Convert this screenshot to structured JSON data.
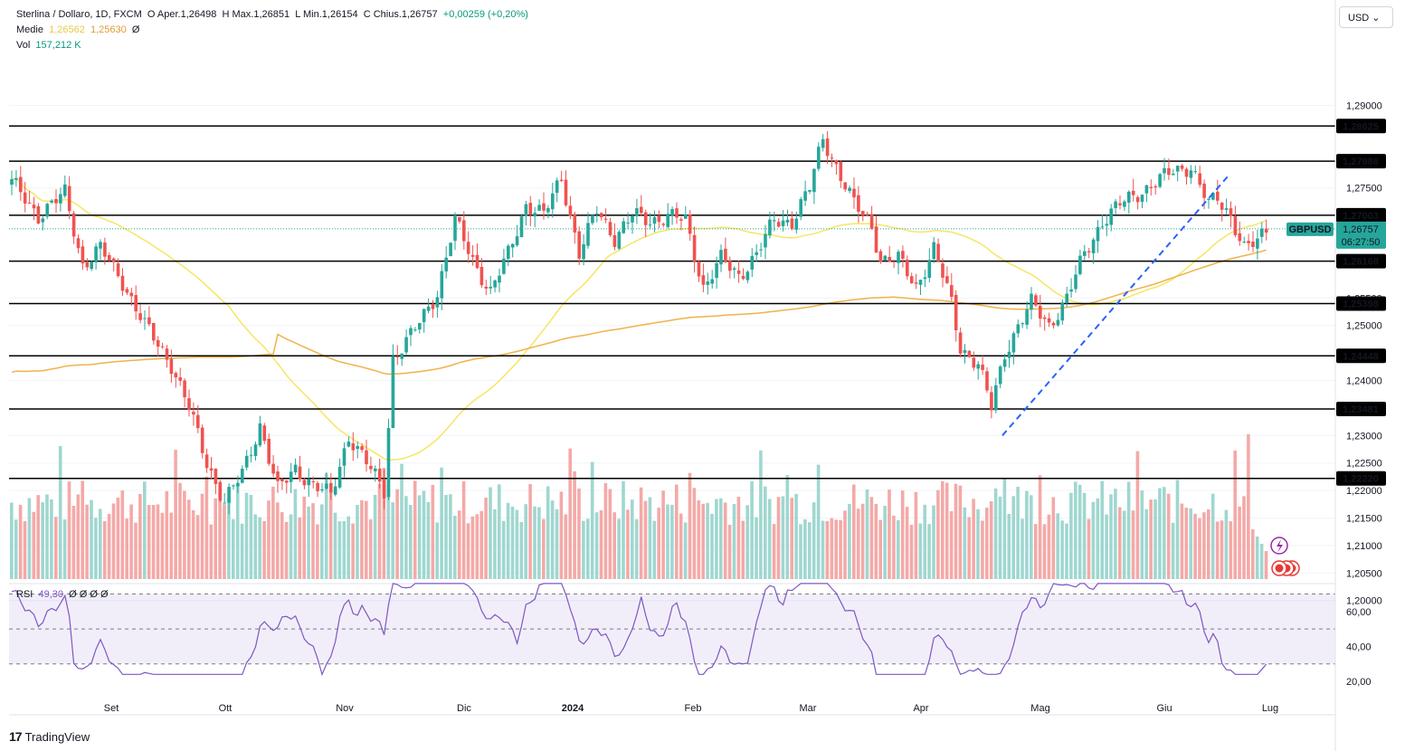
{
  "header": {
    "symbol_line": "Sterlina / Dollaro, 1D, FXCM",
    "o_label": "O",
    "o_value": "Aper.1,26498",
    "h_label": "H",
    "h_value": "Max.1,26851",
    "l_label": "L",
    "l_value": "Min.1,26154",
    "c_label": "C",
    "c_value": "Chius.1,26757",
    "change": "+0,00259 (+0,20%)",
    "ma_label": "Medie",
    "ma1": "1,26562",
    "ma2": "1,25630",
    "ma_eye": "Ø",
    "vol_label": "Vol",
    "vol_value": "157,212 K",
    "rsi_label": "RSI",
    "rsi_value": "49,30",
    "rsi_eyes": "Ø Ø Ø Ø"
  },
  "currency_button": "USD",
  "watermark": "TradingView",
  "colors": {
    "up": "#26a69a",
    "down": "#ef5350",
    "ma_fast": "#f5e663",
    "ma_slow": "#f0b24a",
    "trend": "#2962ff",
    "rsi": "#7e57c2"
  },
  "chart_data": {
    "type": "candlestick",
    "price_axis": {
      "min": 1.195,
      "max": 1.2955,
      "ticks": [
        "1,29000",
        "1,27500",
        "1,25500",
        "1,25000",
        "1,24000",
        "1,23000",
        "1,22500",
        "1,22000",
        "1,21500",
        "1,21000",
        "1,20500",
        "1,20000"
      ]
    },
    "time_labels": [
      "Set",
      "Ott",
      "Nov",
      "Dic",
      "2024",
      "Feb",
      "Mar",
      "Apr",
      "Mag",
      "Giu",
      "Lug"
    ],
    "horizontal_levels": [
      "1,28625",
      "1,27986",
      "1,27003",
      "1,26168",
      "1,25398",
      "1,24448",
      "1,23481",
      "1,22220"
    ],
    "last_price": {
      "symbol": "GBPUSD",
      "price": "1,26757",
      "countdown": "06:27:50"
    },
    "trendline": {
      "from": [
        "Apr-22",
        1.23
      ],
      "to": [
        "Giu-12",
        1.276
      ]
    },
    "rsi": {
      "ticks": [
        "60,00",
        "40,00",
        "20,00"
      ],
      "upper": 70,
      "lower": 30,
      "mid": 50
    },
    "anchors": [
      {
        "i": 0,
        "p": 1.276
      },
      {
        "i": 6,
        "p": 1.27
      },
      {
        "i": 12,
        "p": 1.274
      },
      {
        "i": 16,
        "p": 1.261
      },
      {
        "i": 20,
        "p": 1.264
      },
      {
        "i": 25,
        "p": 1.258
      },
      {
        "i": 30,
        "p": 1.25
      },
      {
        "i": 36,
        "p": 1.243
      },
      {
        "i": 40,
        "p": 1.235
      },
      {
        "i": 44,
        "p": 1.225
      },
      {
        "i": 48,
        "p": 1.218
      },
      {
        "i": 52,
        "p": 1.223
      },
      {
        "i": 56,
        "p": 1.232
      },
      {
        "i": 60,
        "p": 1.22
      },
      {
        "i": 64,
        "p": 1.224
      },
      {
        "i": 68,
        "p": 1.221
      },
      {
        "i": 72,
        "p": 1.219
      },
      {
        "i": 76,
        "p": 1.23
      },
      {
        "i": 80,
        "p": 1.225
      },
      {
        "i": 84,
        "p": 1.22
      },
      {
        "i": 86,
        "p": 1.244
      },
      {
        "i": 90,
        "p": 1.248
      },
      {
        "i": 96,
        "p": 1.256
      },
      {
        "i": 100,
        "p": 1.269
      },
      {
        "i": 104,
        "p": 1.262
      },
      {
        "i": 108,
        "p": 1.256
      },
      {
        "i": 112,
        "p": 1.263
      },
      {
        "i": 116,
        "p": 1.272
      },
      {
        "i": 120,
        "p": 1.27
      },
      {
        "i": 124,
        "p": 1.277
      },
      {
        "i": 128,
        "p": 1.263
      },
      {
        "i": 132,
        "p": 1.271
      },
      {
        "i": 136,
        "p": 1.266
      },
      {
        "i": 140,
        "p": 1.27
      },
      {
        "i": 144,
        "p": 1.269
      },
      {
        "i": 148,
        "p": 1.27
      },
      {
        "i": 152,
        "p": 1.269
      },
      {
        "i": 156,
        "p": 1.257
      },
      {
        "i": 160,
        "p": 1.262
      },
      {
        "i": 164,
        "p": 1.259
      },
      {
        "i": 168,
        "p": 1.263
      },
      {
        "i": 172,
        "p": 1.269
      },
      {
        "i": 176,
        "p": 1.269
      },
      {
        "i": 180,
        "p": 1.275
      },
      {
        "i": 183,
        "p": 1.284
      },
      {
        "i": 186,
        "p": 1.279
      },
      {
        "i": 190,
        "p": 1.272
      },
      {
        "i": 194,
        "p": 1.268
      },
      {
        "i": 196,
        "p": 1.262
      },
      {
        "i": 200,
        "p": 1.262
      },
      {
        "i": 204,
        "p": 1.257
      },
      {
        "i": 208,
        "p": 1.264
      },
      {
        "i": 210,
        "p": 1.259
      },
      {
        "i": 212,
        "p": 1.254
      },
      {
        "i": 214,
        "p": 1.246
      },
      {
        "i": 218,
        "p": 1.243
      },
      {
        "i": 221,
        "p": 1.235
      },
      {
        "i": 224,
        "p": 1.245
      },
      {
        "i": 227,
        "p": 1.25
      },
      {
        "i": 230,
        "p": 1.254
      },
      {
        "i": 234,
        "p": 1.25
      },
      {
        "i": 238,
        "p": 1.255
      },
      {
        "i": 242,
        "p": 1.263
      },
      {
        "i": 246,
        "p": 1.269
      },
      {
        "i": 250,
        "p": 1.272
      },
      {
        "i": 254,
        "p": 1.274
      },
      {
        "i": 258,
        "p": 1.276
      },
      {
        "i": 262,
        "p": 1.278
      },
      {
        "i": 266,
        "p": 1.279
      },
      {
        "i": 270,
        "p": 1.272
      },
      {
        "i": 272,
        "p": 1.273
      },
      {
        "i": 275,
        "p": 1.27
      },
      {
        "i": 278,
        "p": 1.264
      },
      {
        "i": 281,
        "p": 1.265
      },
      {
        "i": 283,
        "p": 1.2675
      }
    ]
  }
}
